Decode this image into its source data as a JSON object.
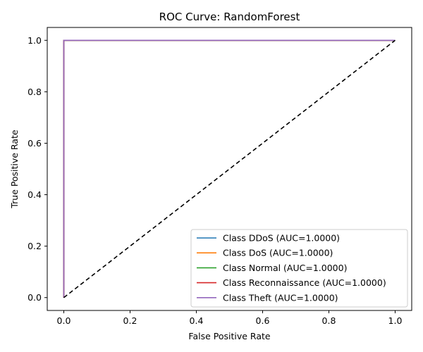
{
  "chart_data": {
    "type": "line",
    "title": "ROC Curve: RandomForest",
    "xlabel": "False Positive Rate",
    "ylabel": "True Positive Rate",
    "xlim": [
      -0.05,
      1.05
    ],
    "ylim": [
      -0.05,
      1.05
    ],
    "xticks": [
      "0.0",
      "0.2",
      "0.4",
      "0.6",
      "0.8",
      "1.0"
    ],
    "yticks": [
      "0.0",
      "0.2",
      "0.4",
      "0.6",
      "0.8",
      "1.0"
    ],
    "grid": false,
    "legend_position": "lower-right",
    "series": [
      {
        "name": "Class DDoS (AUC=1.0000)",
        "color": "#1f77b4",
        "x": [
          0,
          0,
          1
        ],
        "y": [
          0,
          1,
          1
        ]
      },
      {
        "name": "Class DoS (AUC=1.0000)",
        "color": "#ff7f0e",
        "x": [
          0,
          0,
          1
        ],
        "y": [
          0,
          1,
          1
        ]
      },
      {
        "name": "Class Normal (AUC=1.0000)",
        "color": "#2ca02c",
        "x": [
          0,
          0,
          1
        ],
        "y": [
          0,
          1,
          1
        ]
      },
      {
        "name": "Class Reconnaissance (AUC=1.0000)",
        "color": "#d62728",
        "x": [
          0,
          0,
          1
        ],
        "y": [
          0,
          1,
          1
        ]
      },
      {
        "name": "Class Theft (AUC=1.0000)",
        "color": "#9467bd",
        "x": [
          0,
          0,
          1
        ],
        "y": [
          0,
          1,
          1
        ]
      }
    ],
    "reference_line": {
      "x": [
        0,
        1
      ],
      "y": [
        0,
        1
      ],
      "color": "#000000",
      "style": "dashed"
    }
  }
}
